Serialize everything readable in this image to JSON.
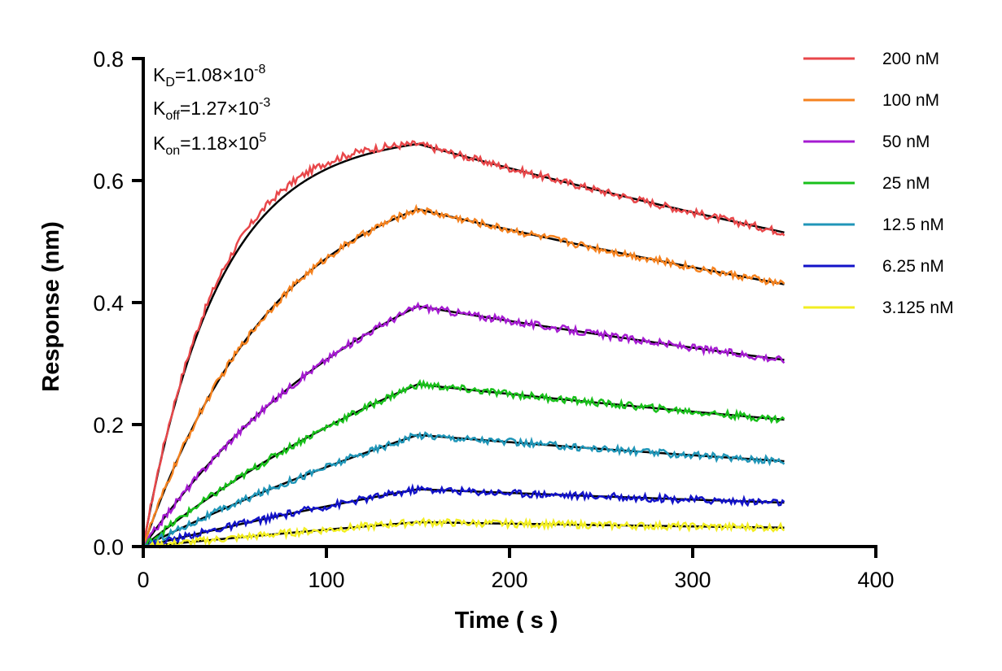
{
  "chart_data": {
    "type": "line",
    "title": "",
    "xlabel": "Time ( s )",
    "ylabel": "Response (nm)",
    "xlim": [
      0,
      400
    ],
    "ylim": [
      0,
      0.8
    ],
    "x_ticks": [
      "0",
      "100",
      "200",
      "300",
      "400"
    ],
    "y_ticks": [
      "0.0",
      "0.2",
      "0.4",
      "0.6",
      "0.8"
    ],
    "grid": false,
    "legend_position": "right",
    "association_end_time": 150,
    "end_time": 350,
    "kinetics": {
      "KD": {
        "base": "K",
        "sub": "D",
        "mid": "=1.08×10",
        "exp": "-8"
      },
      "Koff": {
        "base": "K",
        "sub": "off",
        "mid": "=1.27×10",
        "exp": "-3"
      },
      "Kon": {
        "base": "K",
        "sub": "on",
        "mid": "=1.18×10",
        "exp": "5"
      }
    },
    "series": [
      {
        "name": "200 nM",
        "color": "#e8474a",
        "rmax_fit": 0.66,
        "end_fit": 0.515,
        "k_obs": 0.0245
      },
      {
        "name": "100 nM",
        "color": "#f5821f",
        "rmax_fit": 0.553,
        "end_fit": 0.43,
        "k_obs": 0.0136
      },
      {
        "name": "50 nM",
        "color": "#a51bd1",
        "rmax_fit": 0.394,
        "end_fit": 0.306,
        "k_obs": 0.0072
      },
      {
        "name": "25 nM",
        "color": "#19c01b",
        "rmax_fit": 0.266,
        "end_fit": 0.208,
        "k_obs": 0.0043
      },
      {
        "name": "12.5 nM",
        "color": "#2096b8",
        "rmax_fit": 0.183,
        "end_fit": 0.14,
        "k_obs": 0.0028
      },
      {
        "name": "6.25 nM",
        "color": "#1212c8",
        "rmax_fit": 0.094,
        "end_fit": 0.072,
        "k_obs": 0.0021
      },
      {
        "name": "3.125 nM",
        "color": "#f2ee22",
        "rmax_fit": 0.04,
        "end_fit": 0.031,
        "k_obs": 0.0015
      }
    ],
    "fit_color": "#000000"
  }
}
